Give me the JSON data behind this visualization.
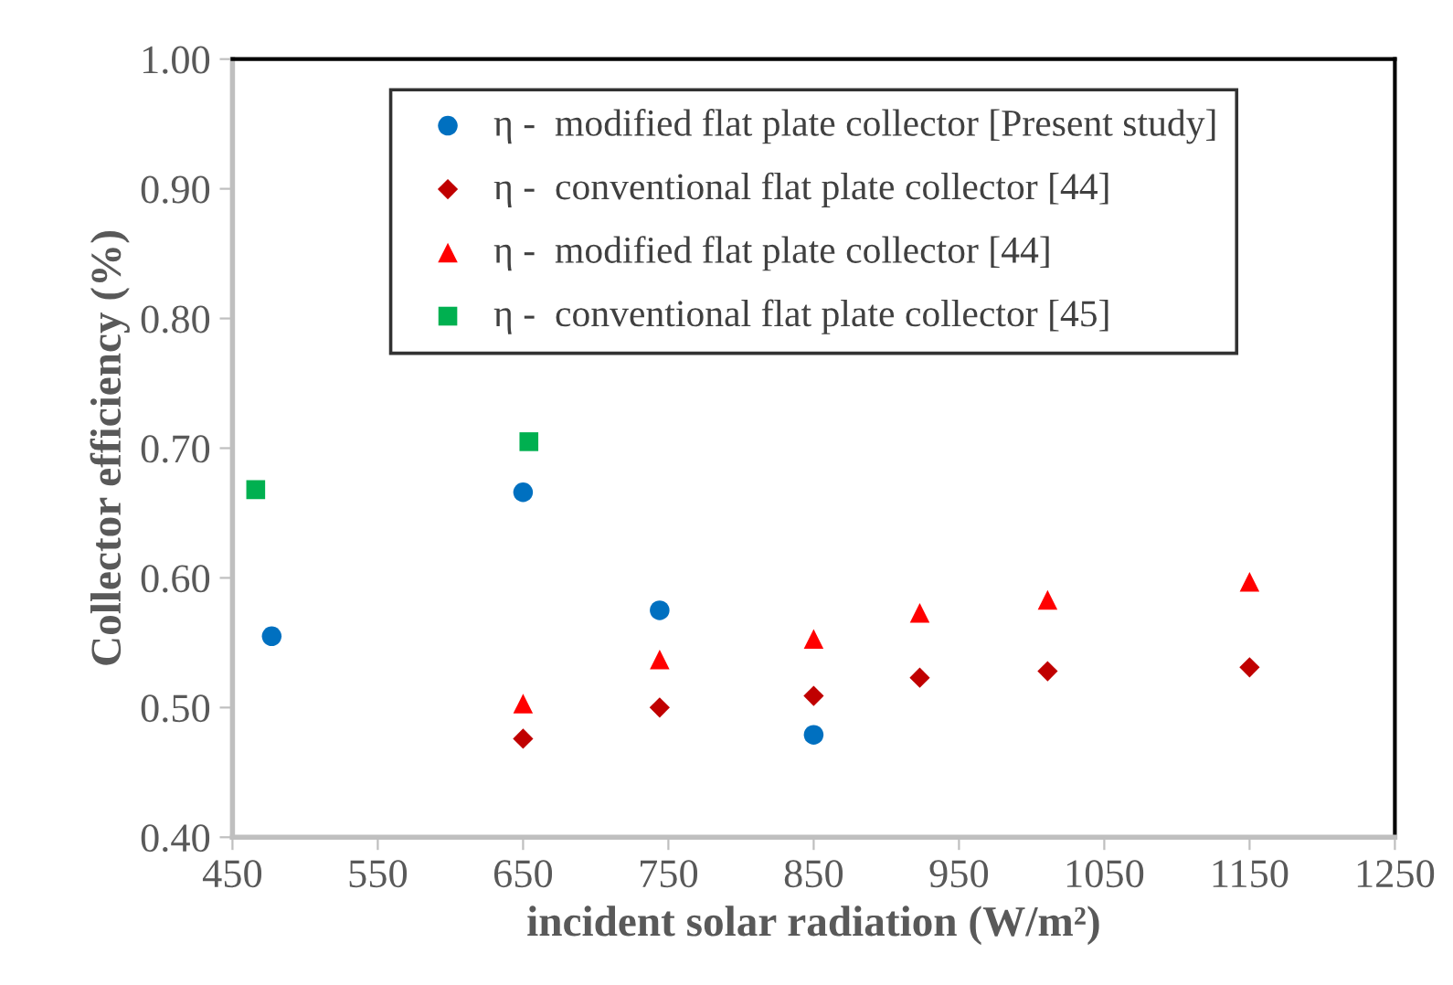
{
  "chart_data": {
    "type": "scatter",
    "xlabel": "incident solar radiation (W/m²)",
    "ylabel": "Collector efficiency (%)",
    "xlim": [
      450,
      1250
    ],
    "xticks": [
      450,
      550,
      650,
      750,
      850,
      950,
      1050,
      1150,
      1250
    ],
    "ylim": [
      0.4,
      1.0
    ],
    "yticks": [
      {
        "value": 0.4,
        "label": "0.40"
      },
      {
        "value": 0.5,
        "label": "0.50"
      },
      {
        "value": 0.6,
        "label": "0.60"
      },
      {
        "value": 0.7,
        "label": "0.70"
      },
      {
        "value": 0.8,
        "label": "0.80"
      },
      {
        "value": 0.9,
        "label": "0.90"
      },
      {
        "value": 1.0,
        "label": "1.00"
      }
    ],
    "grid": false,
    "legend": "top",
    "series": [
      {
        "name": "η -  modified flat plate collector [Present study]",
        "color": "#0070c0",
        "marker": "circle",
        "x": [
          477,
          650,
          744,
          850
        ],
        "values": [
          0.555,
          0.666,
          0.575,
          0.479
        ]
      },
      {
        "name": "η -  conventional flat plate collector [44]",
        "color": "#c00000",
        "marker": "diamond",
        "x": [
          650,
          744,
          850,
          923,
          1011,
          1150
        ],
        "values": [
          0.476,
          0.5,
          0.509,
          0.523,
          0.528,
          0.531
        ]
      },
      {
        "name": "η -  modified flat plate collector [44]",
        "color": "#ff0000",
        "marker": "triangle",
        "x": [
          650,
          744,
          850,
          923,
          1011,
          1150
        ],
        "values": [
          0.503,
          0.537,
          0.553,
          0.573,
          0.583,
          0.597
        ]
      },
      {
        "name": "η -  conventional flat plate collector [45]",
        "color": "#00b050",
        "marker": "square",
        "x": [
          466,
          654
        ],
        "values": [
          0.668,
          0.705
        ]
      }
    ]
  }
}
